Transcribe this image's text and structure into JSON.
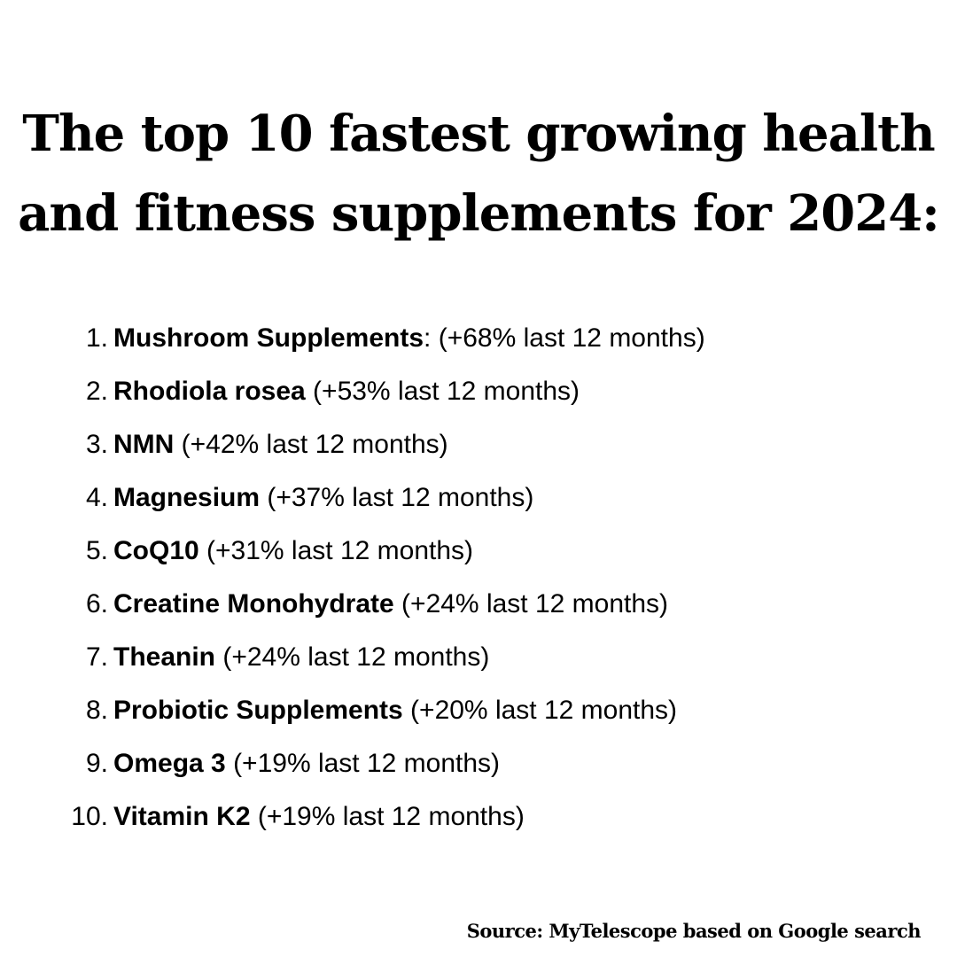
{
  "title": {
    "line1": "The top 10 fastest growing health",
    "line2": "and fitness supplements for 2024:"
  },
  "items": [
    {
      "number": "1.",
      "name": "Mushroom Supplements",
      "detail": ": (+68% last 12 months)"
    },
    {
      "number": "2.",
      "name": "Rhodiola rosea",
      "detail": " (+53% last 12 months)"
    },
    {
      "number": "3.",
      "name": "NMN",
      "detail": " (+42% last 12 months)"
    },
    {
      "number": "4.",
      "name": "Magnesium",
      "detail": " (+37% last 12 months)"
    },
    {
      "number": "5.",
      "name": "CoQ10",
      "detail": " (+31% last 12 months)"
    },
    {
      "number": "6.",
      "name": "Creatine Monohydrate",
      "detail": " (+24% last 12 months)"
    },
    {
      "number": "7.",
      "name": "Theanin",
      "detail": " (+24% last 12 months)"
    },
    {
      "number": "8.",
      "name": "Probiotic Supplements",
      "detail": " (+20% last 12 months)"
    },
    {
      "number": "9.",
      "name": "Omega 3",
      "detail": " (+19% last 12 months)"
    },
    {
      "number": "10.",
      "name": "Vitamin K2",
      "detail": " (+19% last 12 months)"
    }
  ],
  "source": "Source: MyTelescope based on Google search"
}
